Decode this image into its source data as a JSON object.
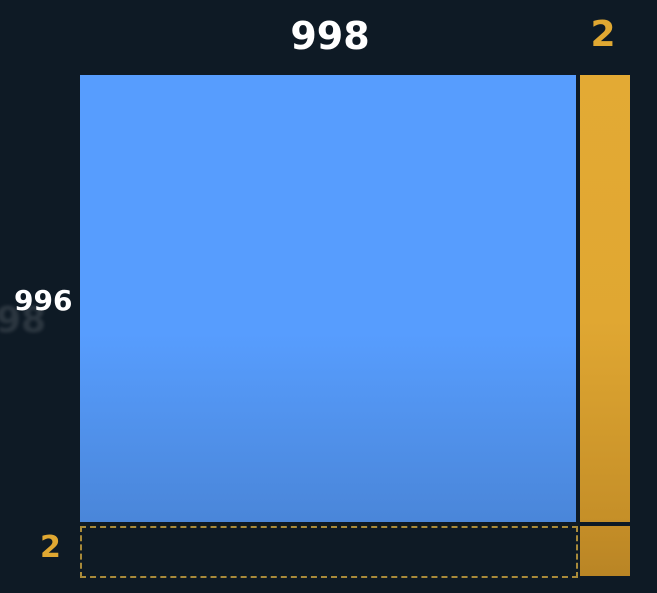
{
  "diagram": {
    "top_label": "998",
    "top_right_label": "2",
    "left_label": "996",
    "left_label_ghost": "98",
    "bottom_left_label": "2"
  },
  "colors": {
    "background": "#0e1a25",
    "blue_square": "#579dfe",
    "gold": "#e0a832",
    "dashed_border": "#a88a3a"
  }
}
